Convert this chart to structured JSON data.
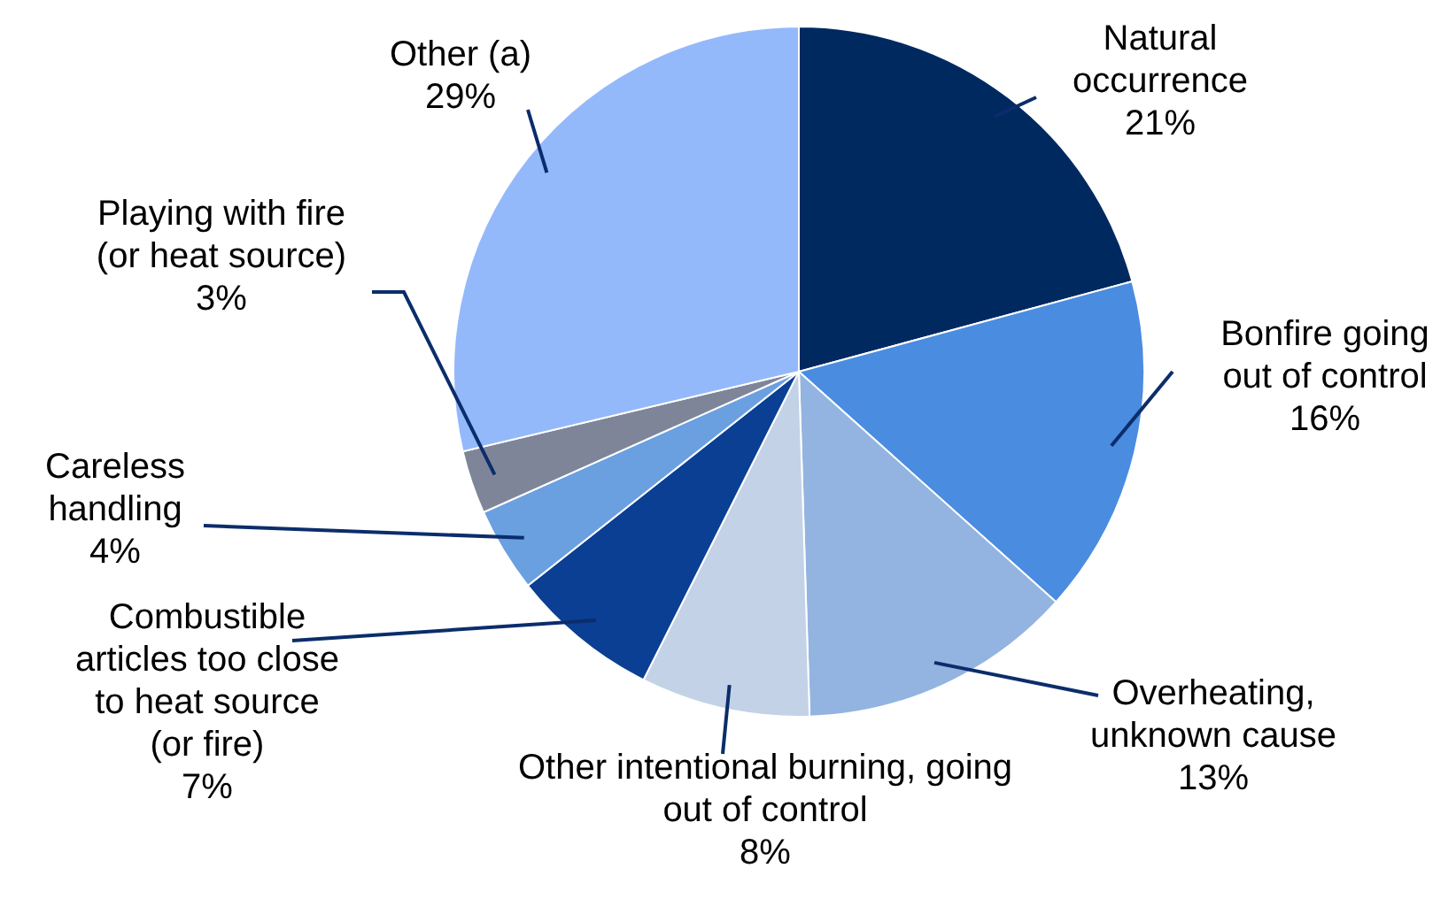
{
  "chart_data": {
    "type": "pie",
    "categories": [
      "Natural occurrence",
      "Bonfire going out of control",
      "Overheating, unknown cause",
      "Other intentional burning, going out of control",
      "Combustible articles too close to heat source (or fire)",
      "Careless handling",
      "Playing with fire (or heat source)",
      "Other (a)"
    ],
    "values": [
      21,
      16,
      13,
      8,
      7,
      4,
      3,
      29
    ],
    "value_labels": [
      "21%",
      "16%",
      "13%",
      "8%",
      "7%",
      "4%",
      "3%",
      "29%"
    ],
    "colors": [
      "#002960",
      "#4a8ce0",
      "#93b4e0",
      "#c3d2e6",
      "#0a3f94",
      "#6aa0e0",
      "#7f8599",
      "#94b9fb"
    ]
  }
}
